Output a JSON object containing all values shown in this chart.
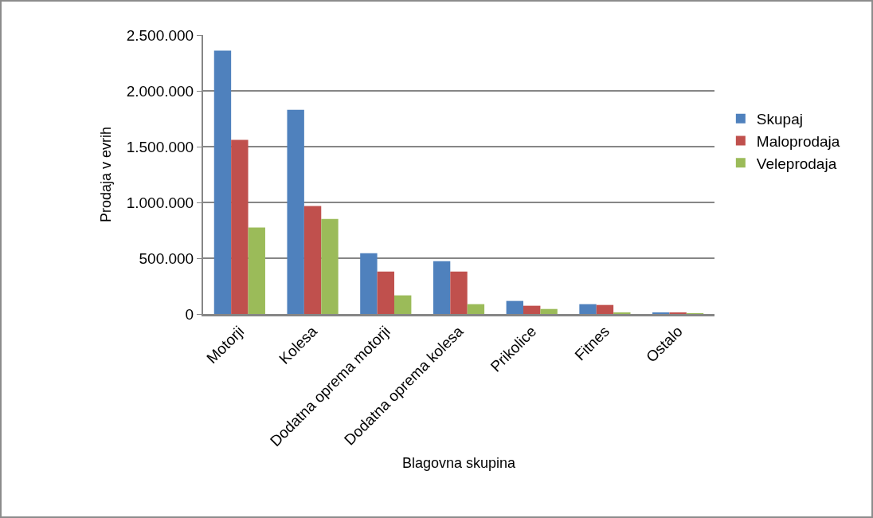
{
  "chart_data": {
    "type": "bar",
    "xlabel": "Blagovna skupina",
    "ylabel": "Prodaja v evrih",
    "categories": [
      "Motorji",
      "Kolesa",
      "Dodatna oprema motorji",
      "Dodatna oprema kolesa",
      "Prikolice",
      "Fitnes",
      "Ostalo"
    ],
    "series": [
      {
        "name": "Skupaj",
        "color": "#4f81bd",
        "values": [
          2360000,
          1830000,
          545000,
          474000,
          117000,
          88000,
          10000
        ]
      },
      {
        "name": "Maloprodaja",
        "color": "#c0504d",
        "values": [
          1560000,
          967000,
          381000,
          381000,
          74000,
          81000,
          10000
        ]
      },
      {
        "name": "Veleprodaja",
        "color": "#9bbb59",
        "values": [
          775000,
          852000,
          167000,
          88000,
          45000,
          10000,
          2000
        ]
      }
    ],
    "ylim": [
      0,
      2500000
    ],
    "yticks": [
      {
        "value": 0,
        "label": "0"
      },
      {
        "value": 500000,
        "label": "500.000"
      },
      {
        "value": 1000000,
        "label": "1.000.000"
      },
      {
        "value": 1500000,
        "label": "1.500.000"
      },
      {
        "value": 2000000,
        "label": "2.000.000"
      },
      {
        "value": 2500000,
        "label": "2.500.000"
      }
    ],
    "grid": "y",
    "legend": "right"
  }
}
